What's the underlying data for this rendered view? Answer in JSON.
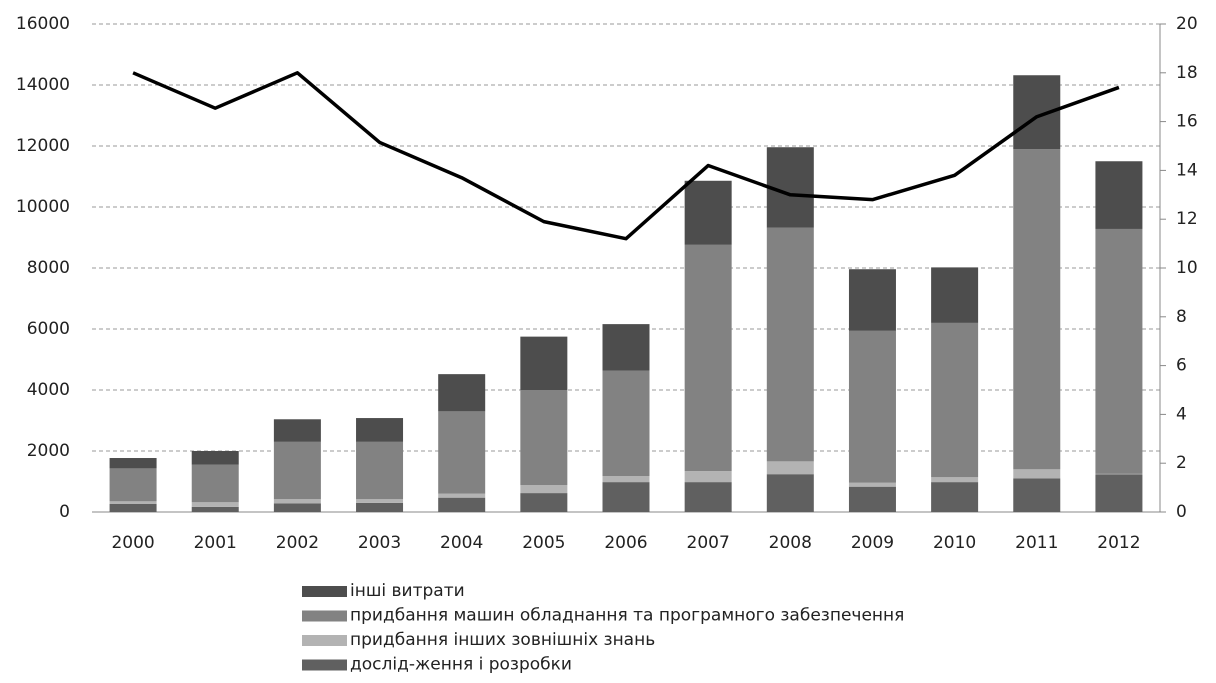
{
  "chart_data": {
    "type": "bar",
    "stacked": true,
    "categories": [
      "2000",
      "2001",
      "2002",
      "2003",
      "2004",
      "2005",
      "2006",
      "2007",
      "2008",
      "2009",
      "2010",
      "2011",
      "2012"
    ],
    "series": [
      {
        "name": "дослід-ження і розробки",
        "color": "#606060",
        "values": [
          270,
          170,
          280,
          300,
          470,
          620,
          980,
          980,
          1240,
          830,
          980,
          1100,
          1230
        ]
      },
      {
        "name": "придбання інших зовнішніх знань",
        "color": "#b3b3b3",
        "values": [
          80,
          150,
          140,
          120,
          130,
          260,
          200,
          360,
          420,
          130,
          160,
          300,
          20
        ]
      },
      {
        "name": "придбання машин обладнання та програмного забезпечення",
        "color": "#828282",
        "values": [
          1080,
          1230,
          1880,
          1880,
          2700,
          3120,
          3460,
          7420,
          7660,
          4980,
          5060,
          10500,
          8030
        ]
      },
      {
        "name": "інші витрати",
        "color": "#4d4d4d",
        "values": [
          340,
          450,
          740,
          780,
          1220,
          1750,
          1520,
          2100,
          2640,
          2020,
          1820,
          2420,
          2220
        ]
      },
      {
        "type": "line",
        "axis": "y2",
        "color": "#000000",
        "values": [
          18.0,
          16.55,
          18.0,
          15.15,
          13.7,
          11.9,
          11.2,
          14.2,
          13.0,
          12.8,
          13.8,
          16.2,
          17.4
        ]
      }
    ],
    "ylim": [
      0,
      16000
    ],
    "yticks": [
      0,
      2000,
      4000,
      6000,
      8000,
      10000,
      12000,
      14000,
      16000
    ],
    "y2lim": [
      0,
      20
    ],
    "y2ticks": [
      0,
      2,
      4,
      6,
      8,
      10,
      12,
      14,
      16,
      18,
      20
    ],
    "grid": true
  }
}
